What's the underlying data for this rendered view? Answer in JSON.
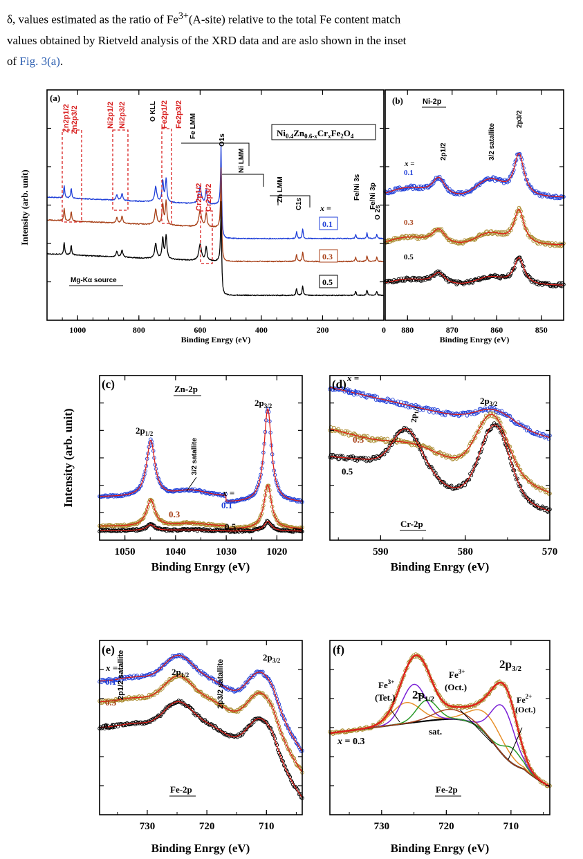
{
  "paragraph": {
    "line1_a": "δ, values estimated as the ratio of Fe",
    "line1_sup": "3+",
    "line1_b": "(A-site) relative to the total Fe content match",
    "line2": "values obtained by Rietveld analysis of the XRD data and are aslo shown in the inset",
    "line3_a": "of ",
    "line3_link": "Fig. 3(a)",
    "line3_b": "."
  },
  "figure": {
    "ylabel_common": "Intensity (arb. unit)",
    "xlabel": "Binding Enrgy (eV)",
    "colors": {
      "blue": "#1f3fd8",
      "brown": "#a8421a",
      "olive": "#a8882a",
      "black": "#000000",
      "red_fit": "#e0201a",
      "red_label": "#d81e1e",
      "purple": "#7a1fd6",
      "orange": "#e8902a",
      "green": "#2a9a2a"
    },
    "panels": {
      "a": {
        "tag": "(a)",
        "formula": "Ni0.4Zn0.6-xCrxFe2O4",
        "x_ticks": [
          "1000",
          "800",
          "600",
          "400",
          "200",
          "0"
        ],
        "xlim": [
          1100,
          0
        ],
        "source": "Mg-Kα source",
        "x_eq": "x =",
        "series": [
          "0.1",
          "0.3",
          "0.5"
        ],
        "labels_red": [
          "Zn2p1/2",
          "Zn2p3/2",
          "Ni2p1/2",
          "Ni2p3/2",
          "Fe2p1/2",
          "Fe2p3/2",
          "Cr2p1/2",
          "Cr2p3/2"
        ],
        "labels_black": [
          "O KLL",
          "Fe LMM",
          "O1s",
          "Ni LMM",
          "Zn LMM",
          "C1s",
          "Fe/Ni 3s",
          "Fe/Ni 3p",
          "O 2s"
        ]
      },
      "b": {
        "tag": "(b)",
        "title": "Ni-2p",
        "x_ticks": [
          "880",
          "870",
          "860",
          "850"
        ],
        "xlim": [
          885,
          845
        ],
        "x_eq": "x =",
        "series": [
          "0.1",
          "0.3",
          "0.5"
        ],
        "peaks": [
          "2p1/2",
          "3/2 satallite",
          "2p3/2"
        ]
      },
      "c": {
        "tag": "(c)",
        "title": "Zn-2p",
        "x_ticks": [
          "1050",
          "1040",
          "1030",
          "1020"
        ],
        "xlim": [
          1055,
          1015
        ],
        "x_eq": "x =",
        "series": [
          "0.1",
          "0.3",
          "0.5"
        ],
        "peaks": [
          "2p1/2",
          "3/2 satallite",
          "2p3/2"
        ]
      },
      "d": {
        "tag": "(d)",
        "title": "Cr-2p",
        "x_ticks": [
          "590",
          "580",
          "570"
        ],
        "xlim": [
          596,
          570
        ],
        "x_eq": "x =",
        "series": [
          "0.1",
          "0.3",
          "0.5"
        ],
        "peaks": [
          "2p1/2",
          "2p3/2"
        ]
      },
      "e": {
        "tag": "(e)",
        "title": "Fe-2p",
        "x_ticks": [
          "730",
          "720",
          "710"
        ],
        "xlim": [
          738,
          704
        ],
        "x_eq": "x =",
        "series": [
          "0.1",
          "0.3",
          "0.5"
        ],
        "peaks": [
          "2p1/2 satallite",
          "2p1/2",
          "2p3/2 satallite",
          "2p3/2"
        ]
      },
      "f": {
        "tag": "(f)",
        "title": "Fe-2p",
        "x_ticks": [
          "730",
          "720",
          "710"
        ],
        "xlim": [
          738,
          704
        ],
        "composition": "x = 0.3",
        "sat": "sat.",
        "peaks": [
          "2p1/2",
          "2p3/2"
        ],
        "components": [
          "Fe3+ (Tet.)",
          "Fe3+ (Oct.)",
          "Fe2+ (Oct.)"
        ]
      }
    }
  }
}
